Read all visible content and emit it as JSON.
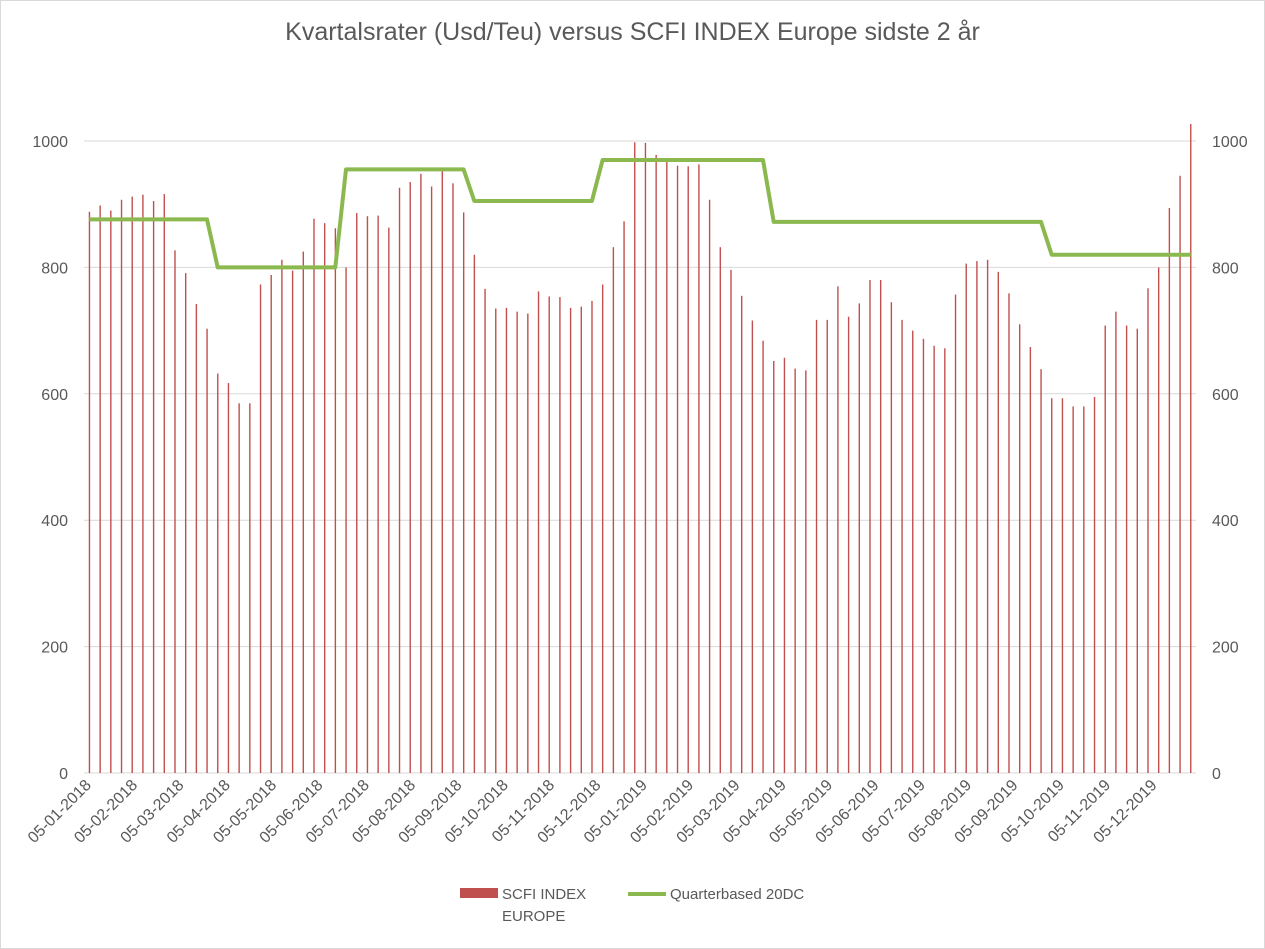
{
  "chart_data": {
    "type": "bar",
    "title": "Kvartalsrater (Usd/Teu) versus SCFI INDEX Europe sidste 2 år",
    "ylim": [
      0,
      1000
    ],
    "y_ticks": [
      "0",
      "200",
      "400",
      "600",
      "800",
      "1000"
    ],
    "y2_ticks": [
      "0",
      "200",
      "400",
      "600",
      "800",
      "1000"
    ],
    "grid": true,
    "legend_position": "bottom",
    "x_tick_labels": [
      "05-01-2018",
      "05-02-2018",
      "05-03-2018",
      "05-04-2018",
      "05-05-2018",
      "05-06-2018",
      "05-07-2018",
      "05-08-2018",
      "05-09-2018",
      "05-10-2018",
      "05-11-2018",
      "05-12-2018",
      "05-01-2019",
      "05-02-2019",
      "05-03-2019",
      "05-04-2019",
      "05-05-2019",
      "05-06-2019",
      "05-07-2019",
      "05-08-2019",
      "05-09-2019",
      "05-10-2019",
      "05-11-2019",
      "05-12-2019"
    ],
    "series": [
      {
        "name": "SCFI INDEX EUROPE",
        "type": "bar",
        "color": "#C0504D",
        "values": [
          888,
          898,
          890,
          907,
          912,
          915,
          905,
          916,
          827,
          791,
          742,
          703,
          632,
          617,
          585,
          585,
          773,
          788,
          812,
          795,
          825,
          877,
          870,
          862,
          800,
          886,
          881,
          882,
          863,
          926,
          935,
          948,
          928,
          958,
          933,
          887,
          820,
          766,
          735,
          736,
          730,
          727,
          762,
          754,
          753,
          736,
          738,
          747,
          773,
          832,
          873,
          998,
          997,
          978,
          972,
          961,
          960,
          963,
          907,
          832,
          796,
          755,
          716,
          684,
          652,
          657,
          640,
          637,
          717,
          717,
          770,
          722,
          743,
          780,
          780,
          745,
          717,
          700,
          687,
          676,
          672,
          757,
          806,
          810,
          812,
          793,
          759,
          710,
          674,
          639,
          593,
          593,
          580,
          580,
          595,
          708,
          730,
          708,
          703,
          767,
          800,
          894,
          945,
          1027
        ]
      },
      {
        "name": "Quarterbased 20DC",
        "type": "line",
        "color": "#8CB94F",
        "values": [
          876,
          876,
          876,
          876,
          876,
          876,
          876,
          876,
          876,
          876,
          876,
          876,
          800,
          800,
          800,
          800,
          800,
          800,
          800,
          800,
          800,
          800,
          800,
          800,
          955,
          955,
          955,
          955,
          955,
          955,
          955,
          955,
          955,
          955,
          955,
          955,
          905,
          905,
          905,
          905,
          905,
          905,
          905,
          905,
          905,
          905,
          905,
          905,
          970,
          970,
          970,
          970,
          970,
          970,
          970,
          970,
          970,
          970,
          970,
          970,
          970,
          970,
          970,
          970,
          872,
          872,
          872,
          872,
          872,
          872,
          872,
          872,
          872,
          872,
          872,
          872,
          872,
          872,
          872,
          872,
          872,
          872,
          872,
          872,
          872,
          872,
          872,
          872,
          872,
          872,
          820,
          820,
          820,
          820,
          820,
          820,
          820,
          820,
          820,
          820,
          820,
          820,
          820,
          820
        ]
      }
    ]
  }
}
